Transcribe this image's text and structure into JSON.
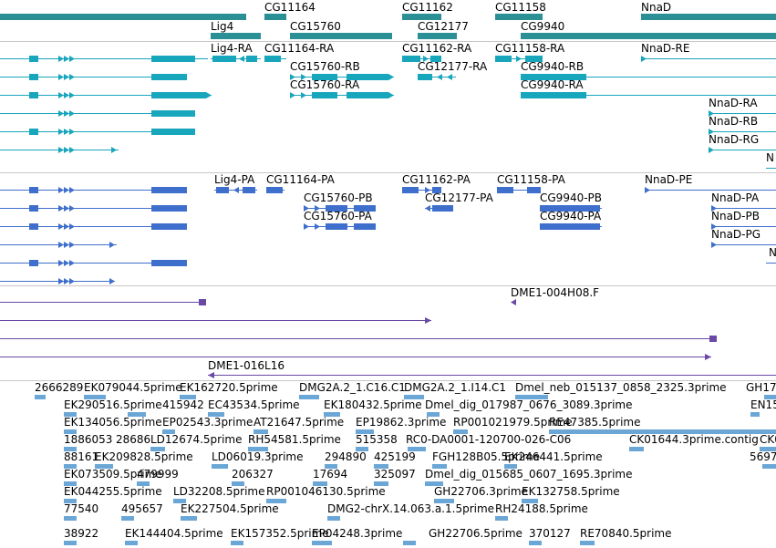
{
  "colors": {
    "gene": "#2b9096",
    "transcript": "#18a6bc",
    "protein": "#3f6fcc",
    "clone": "#6a49a6",
    "est": "#6aa6d6",
    "separator": "#c8c8c8"
  },
  "tracks": {
    "genes": {
      "labels": [
        {
          "text": "CG11164"
        },
        {
          "text": "CG11162"
        },
        {
          "text": "CG11158"
        },
        {
          "text": "NnaD"
        },
        {
          "text": "Lig4"
        },
        {
          "text": "CG15760"
        },
        {
          "text": "CG12177"
        },
        {
          "text": "CG9940"
        }
      ]
    },
    "transcripts": {
      "labels": [
        {
          "text": "Lig4-RA"
        },
        {
          "text": "CG11164-RA"
        },
        {
          "text": "CG11162-RA"
        },
        {
          "text": "CG11158-RA"
        },
        {
          "text": "NnaD-RE"
        },
        {
          "text": "CG15760-RB"
        },
        {
          "text": "CG12177-RA"
        },
        {
          "text": "CG9940-RB"
        },
        {
          "text": "CG15760-RA"
        },
        {
          "text": "CG9940-RA"
        },
        {
          "text": "NnaD-RA"
        },
        {
          "text": "NnaD-RB"
        },
        {
          "text": "NnaD-RG"
        },
        {
          "text": "N"
        }
      ]
    },
    "proteins": {
      "labels": [
        {
          "text": "Lig4-PA"
        },
        {
          "text": "CG11164-PA"
        },
        {
          "text": "CG11162-PA"
        },
        {
          "text": "CG11158-PA"
        },
        {
          "text": "NnaD-PE"
        },
        {
          "text": "CG15760-PB"
        },
        {
          "text": "CG12177-PA"
        },
        {
          "text": "CG9940-PB"
        },
        {
          "text": "NnaD-PA"
        },
        {
          "text": "CG15760-PA"
        },
        {
          "text": "CG9940-PA"
        },
        {
          "text": "NnaD-PB"
        },
        {
          "text": "NnaD-PG"
        },
        {
          "text": "N"
        }
      ]
    },
    "clones": {
      "labels": [
        {
          "text": "DME1-004H08.F"
        },
        {
          "text": "DME1-016L16"
        }
      ]
    },
    "ests": {
      "labels": [
        {
          "text": "2666289"
        },
        {
          "text": "EK079044.5prime"
        },
        {
          "text": "EK162720.5prime"
        },
        {
          "text": "DMG2A.2_1.C16.C1"
        },
        {
          "text": "DMG2A.2_1.I14.C1"
        },
        {
          "text": "Dmel_neb_015137_0858_2325.3prime"
        },
        {
          "text": "GH17"
        },
        {
          "text": "EK290516.5prime"
        },
        {
          "text": "415942"
        },
        {
          "text": "EC43534.5prime"
        },
        {
          "text": "EK180432.5prime"
        },
        {
          "text": "Dmel_dig_017987_0676_3089.3prime"
        },
        {
          "text": "EN15"
        },
        {
          "text": "EK134056.5prime"
        },
        {
          "text": "EP02543.3prime"
        },
        {
          "text": "AT21647.5prime"
        },
        {
          "text": "EP19862.3prime"
        },
        {
          "text": "RP001021979.5prime"
        },
        {
          "text": "RE47385.5prime"
        },
        {
          "text": "1886053"
        },
        {
          "text": "28686"
        },
        {
          "text": "LD12674.5prime"
        },
        {
          "text": "RH54581.5prime"
        },
        {
          "text": "515358"
        },
        {
          "text": "RC0-DA0001-120700-026-C06"
        },
        {
          "text": "CK01644.3prime.contig"
        },
        {
          "text": "CK0"
        },
        {
          "text": "88161"
        },
        {
          "text": "EK209828.5prime"
        },
        {
          "text": "LD06019.3prime"
        },
        {
          "text": "294890"
        },
        {
          "text": "425199"
        },
        {
          "text": "FGH128B05.5prime"
        },
        {
          "text": "EK246441.5prime"
        },
        {
          "text": "5697"
        },
        {
          "text": "EK073509.5prime"
        },
        {
          "text": "479999"
        },
        {
          "text": "206327"
        },
        {
          "text": "17694"
        },
        {
          "text": "325097"
        },
        {
          "text": "Dmel_dig_015685_0607_1695.3prime"
        },
        {
          "text": "EK044255.5prime"
        },
        {
          "text": "LD32208.5prime"
        },
        {
          "text": "RP001046130.5prime"
        },
        {
          "text": "GH22706.3prime"
        },
        {
          "text": "EK132758.5prime"
        },
        {
          "text": "77540"
        },
        {
          "text": "495657"
        },
        {
          "text": "EK227504.5prime"
        },
        {
          "text": "DMG2-chrX.14.063.a.1.5prime"
        },
        {
          "text": "RH24188.5prime"
        },
        {
          "text": "38922"
        },
        {
          "text": "EK144404.5prime"
        },
        {
          "text": "EK157352.5prime"
        },
        {
          "text": "EP04248.3prime"
        },
        {
          "text": "GH22706.5prime"
        },
        {
          "text": "370127"
        },
        {
          "text": "RE70840.5prime"
        }
      ]
    }
  }
}
